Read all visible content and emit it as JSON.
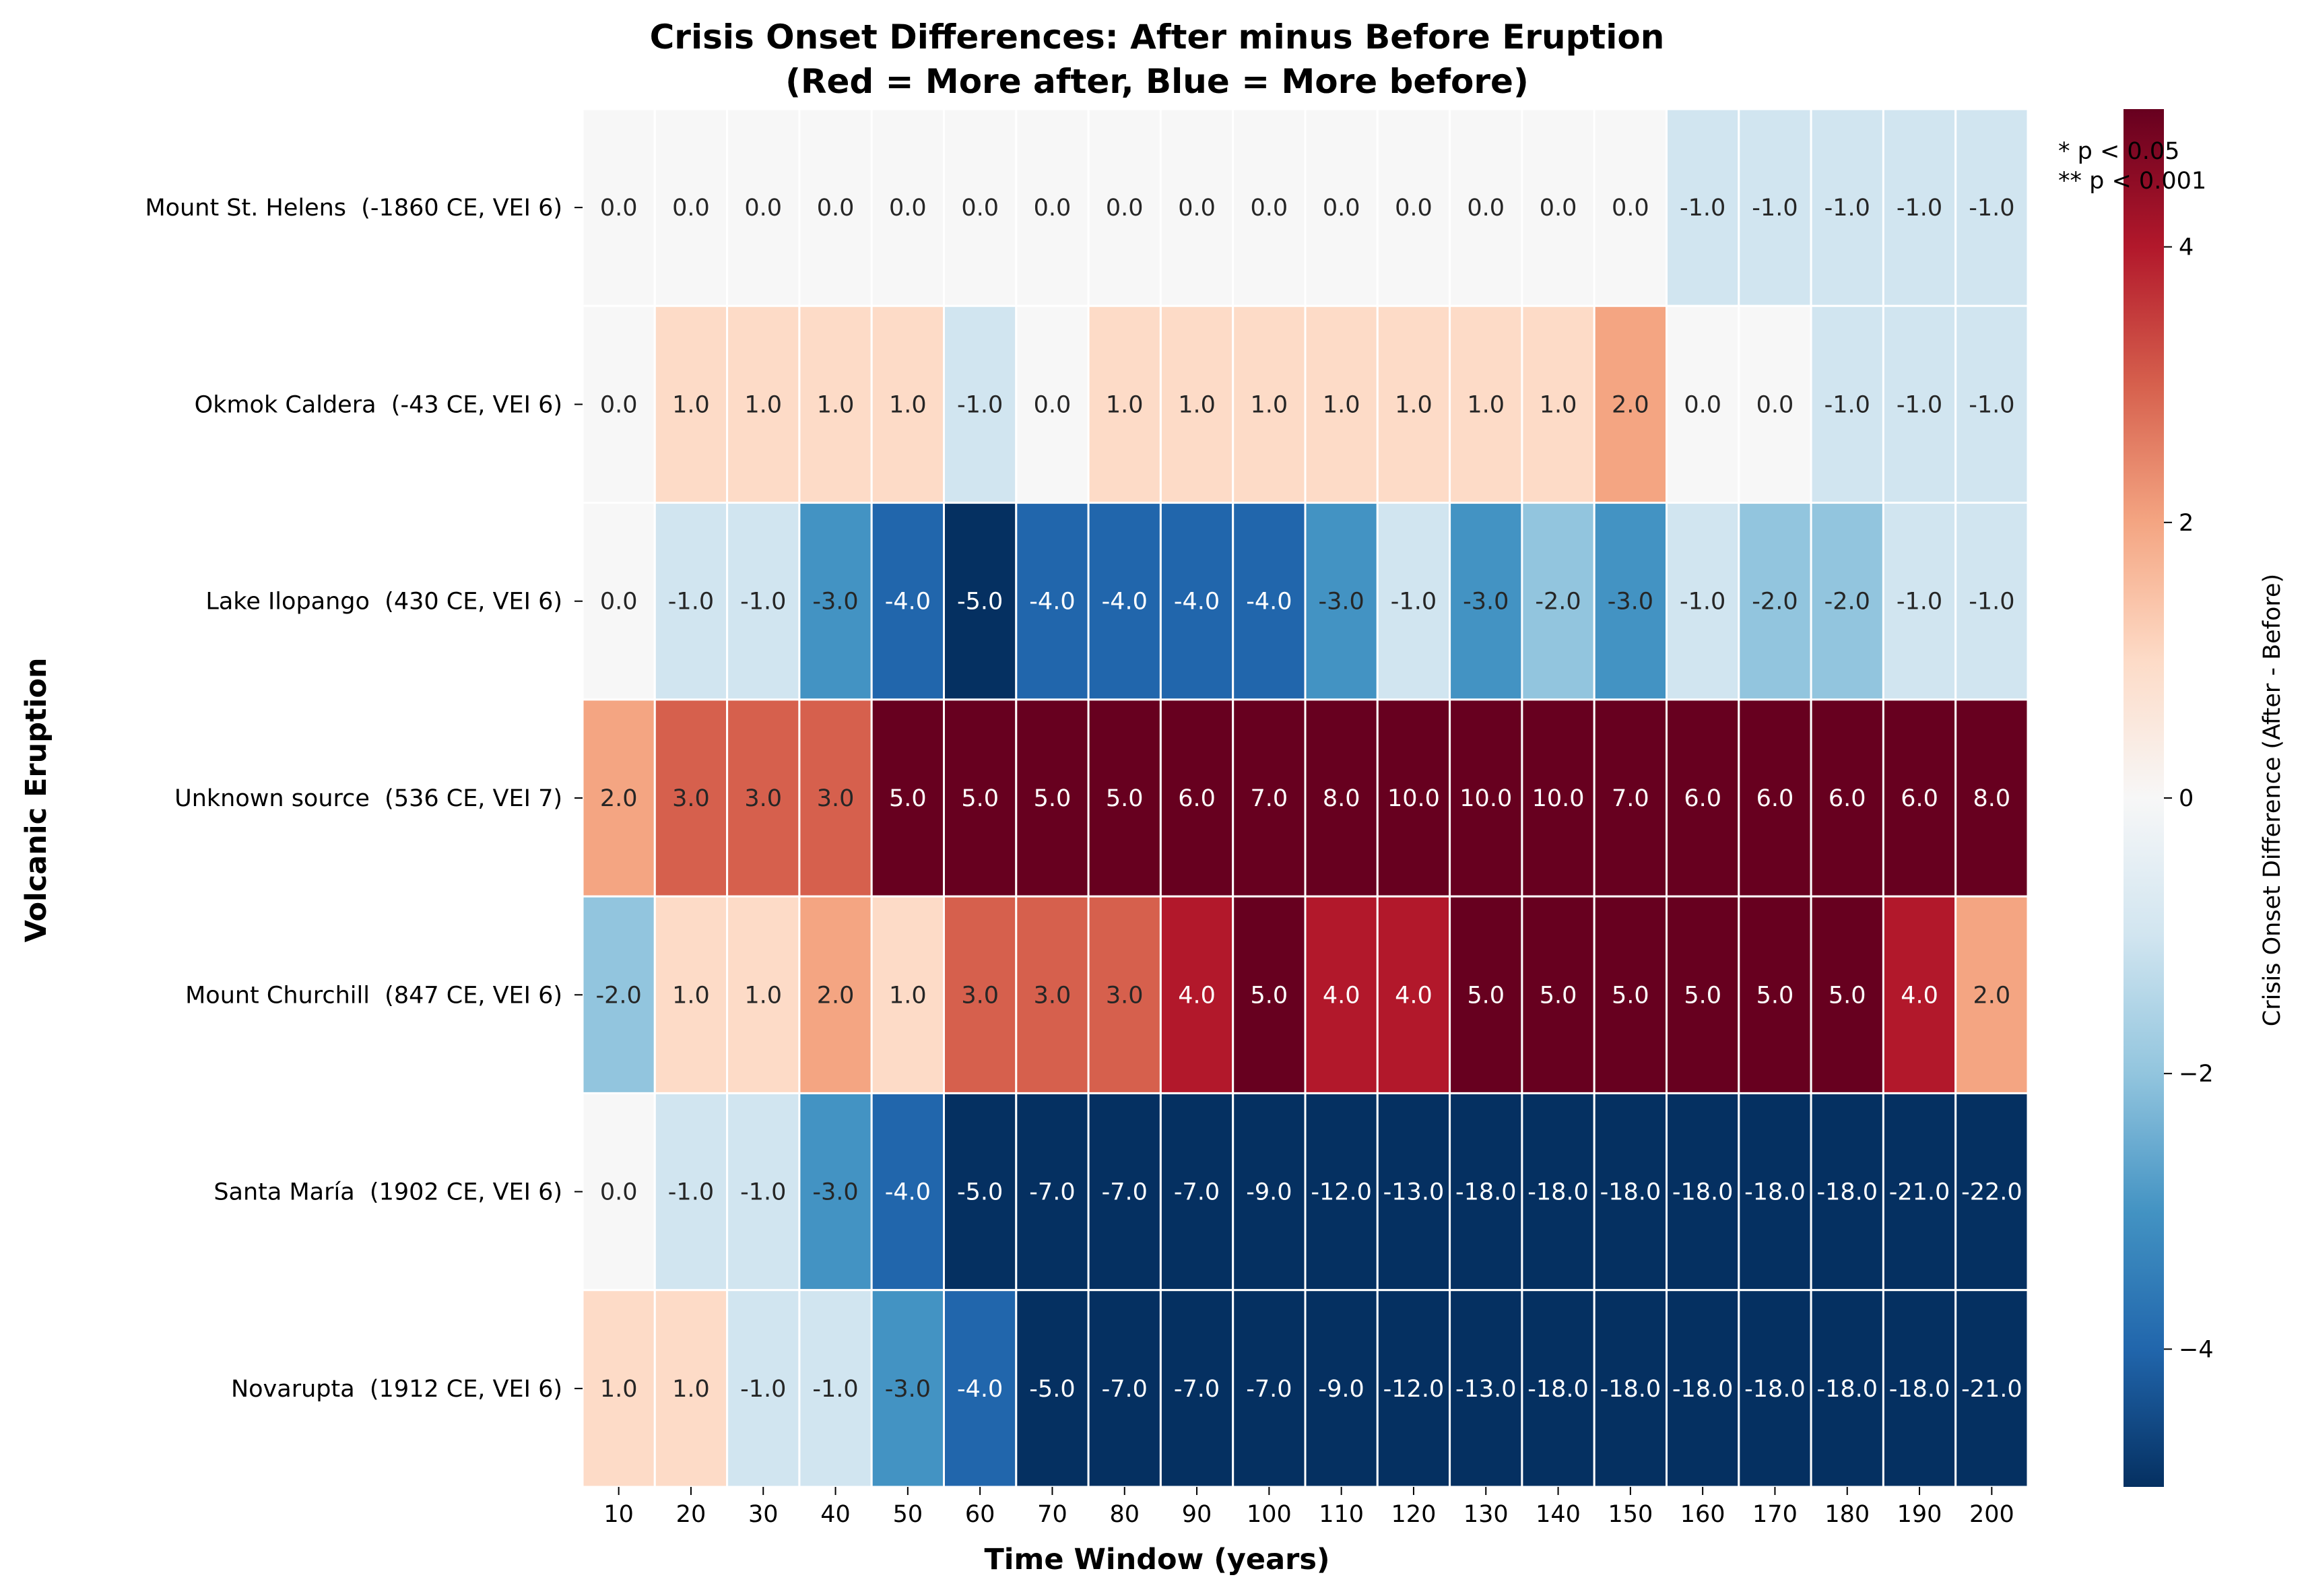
{
  "chart_data": {
    "type": "heatmap",
    "title": "Crisis Onset Differences: After minus Before Eruption",
    "subtitle": "(Red = More after, Blue = More before)",
    "xlabel": "Time Window (years)",
    "ylabel": "Volcanic Eruption",
    "colorbar_label": "Crisis Onset Difference (After - Before)",
    "colorbar_ticks": [
      "4",
      "2",
      "0",
      "−2",
      "−4"
    ],
    "colorbar_tick_values": [
      4,
      2,
      0,
      -2,
      -4
    ],
    "color_range": [
      -5,
      5
    ],
    "colormap": "RdBu_r",
    "significance_notes": [
      "* p < 0.05",
      "** p < 0.001"
    ],
    "x": [
      "10",
      "20",
      "30",
      "40",
      "50",
      "60",
      "70",
      "80",
      "90",
      "100",
      "110",
      "120",
      "130",
      "140",
      "150",
      "160",
      "170",
      "180",
      "190",
      "200"
    ],
    "rows": [
      "Mount St. Helens  (-1860 CE, VEI 6)",
      "Okmok Caldera  (-43 CE, VEI 6)",
      "Lake Ilopango  (430 CE, VEI 6)",
      "Unknown source  (536 CE, VEI 7)",
      "Mount Churchill  (847 CE, VEI 6)",
      "Santa María  (1902 CE, VEI 6)",
      "Novarupta  (1912 CE, VEI 6)"
    ],
    "values": [
      [
        0,
        0,
        0,
        0,
        0,
        0,
        0,
        0,
        0,
        0,
        0,
        0,
        0,
        0,
        0,
        -1,
        -1,
        -1,
        -1,
        -1
      ],
      [
        0,
        1,
        1,
        1,
        1,
        -1,
        0,
        1,
        1,
        1,
        1,
        1,
        1,
        1,
        2,
        0,
        0,
        -1,
        -1,
        -1
      ],
      [
        0,
        -1,
        -1,
        -3,
        -4,
        -5,
        -4,
        -4,
        -4,
        -4,
        -3,
        -1,
        -3,
        -2,
        -3,
        -1,
        -2,
        -2,
        -1,
        -1
      ],
      [
        2,
        3,
        3,
        3,
        5,
        5,
        5,
        5,
        6,
        7,
        8,
        10,
        10,
        10,
        7,
        6,
        6,
        6,
        6,
        8
      ],
      [
        -2,
        1,
        1,
        2,
        1,
        3,
        3,
        3,
        4,
        5,
        4,
        4,
        5,
        5,
        5,
        5,
        5,
        5,
        4,
        2
      ],
      [
        0,
        -1,
        -1,
        -3,
        -4,
        -5,
        -7,
        -7,
        -7,
        -9,
        -12,
        -13,
        -18,
        -18,
        -18,
        -18,
        -18,
        -18,
        -21,
        -22
      ],
      [
        1,
        1,
        -1,
        -1,
        -3,
        -4,
        -5,
        -7,
        -7,
        -7,
        -9,
        -12,
        -13,
        -18,
        -18,
        -18,
        -18,
        -18,
        -18,
        -21
      ]
    ]
  }
}
